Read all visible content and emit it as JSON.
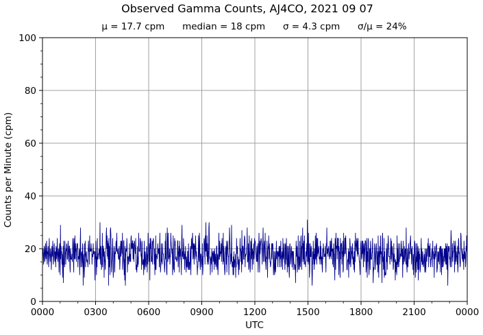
{
  "chart_data": {
    "type": "line",
    "title": "Observed Gamma Counts, AJ4CO, 2021 09 07",
    "subtitle": "μ = 17.7 cpm      median = 18 cpm      σ = 4.3 cpm      σ/μ = 24%",
    "xlabel": "UTC",
    "ylabel": "Counts per Minute (cpm)",
    "x_tick_labels": [
      "0000",
      "0300",
      "0600",
      "0900",
      "1200",
      "1500",
      "1800",
      "2100",
      "0000"
    ],
    "y_tick_labels": [
      "0",
      "20",
      "40",
      "60",
      "80",
      "100"
    ],
    "xlim_minutes": [
      0,
      1440
    ],
    "ylim": [
      0,
      100
    ],
    "grid": true,
    "series": [
      {
        "color": "#00008b",
        "sampling_interval_minutes": 1,
        "values_excerpt_first_60": [
          17,
          19,
          20,
          16,
          14,
          18,
          21,
          19,
          15,
          17,
          22,
          18,
          16,
          20,
          23,
          17,
          14,
          19,
          18,
          21,
          16,
          13,
          19,
          24,
          18,
          17,
          15,
          20,
          19,
          16,
          12,
          18,
          21,
          17,
          19,
          23,
          16,
          14,
          18,
          20,
          22,
          17,
          15,
          19,
          18,
          13,
          21,
          20,
          16,
          18,
          24,
          19,
          15,
          17,
          20,
          18,
          11,
          19,
          22,
          17
        ],
        "mean": 17.7,
        "median": 18,
        "std": 4.3,
        "min": 6,
        "max": 31
      }
    ]
  }
}
